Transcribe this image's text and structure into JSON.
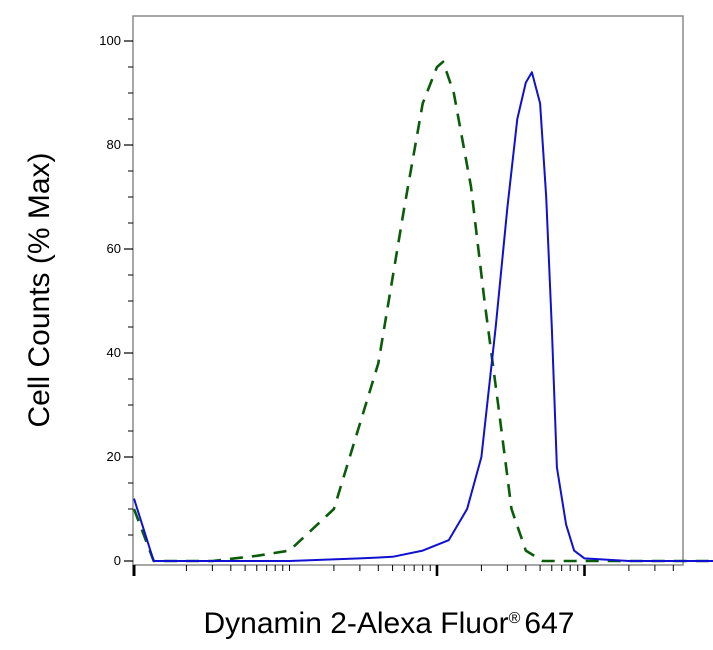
{
  "chart_data": {
    "type": "line",
    "xlabel": "Dynamin 2-Alexa Fluor",
    "xlabel_mark": "®",
    "xlabel_suffix": "647",
    "ylabel": "Cell Counts (% Max)",
    "x_scale": "biexponential",
    "xlim": [
      0,
      100000
    ],
    "ylim": [
      0,
      105
    ],
    "y_ticks": [
      0,
      20,
      40,
      60,
      80,
      100
    ],
    "x_tick_labels": [],
    "grid": false,
    "legend": "none",
    "series": [
      {
        "style": "dashed",
        "color": "#0a5c0a",
        "points": [
          [
            0,
            10
          ],
          [
            12,
            0
          ],
          [
            30,
            0
          ],
          [
            60,
            1
          ],
          [
            100,
            2
          ],
          [
            200,
            10
          ],
          [
            400,
            38
          ],
          [
            600,
            68
          ],
          [
            800,
            88
          ],
          [
            1000,
            95
          ],
          [
            1100,
            96
          ],
          [
            1300,
            90
          ],
          [
            1700,
            72
          ],
          [
            2100,
            50
          ],
          [
            2600,
            30
          ],
          [
            3200,
            10
          ],
          [
            4000,
            2
          ],
          [
            5200,
            0
          ],
          [
            8000,
            0
          ],
          [
            30000,
            0
          ],
          [
            100000,
            0
          ]
        ]
      },
      {
        "style": "solid",
        "color": "#1010d0",
        "points": [
          [
            0,
            12
          ],
          [
            12,
            0
          ],
          [
            50,
            0
          ],
          [
            100,
            0
          ],
          [
            300,
            0.5
          ],
          [
            500,
            0.8
          ],
          [
            800,
            2
          ],
          [
            1200,
            4
          ],
          [
            1600,
            10
          ],
          [
            2000,
            20
          ],
          [
            2500,
            45
          ],
          [
            3000,
            68
          ],
          [
            3500,
            85
          ],
          [
            4000,
            92
          ],
          [
            4400,
            94
          ],
          [
            5000,
            88
          ],
          [
            5500,
            70
          ],
          [
            6000,
            45
          ],
          [
            6500,
            18
          ],
          [
            7500,
            7
          ],
          [
            8500,
            2
          ],
          [
            10000,
            0.5
          ],
          [
            20000,
            0
          ],
          [
            100000,
            0
          ]
        ]
      }
    ]
  }
}
